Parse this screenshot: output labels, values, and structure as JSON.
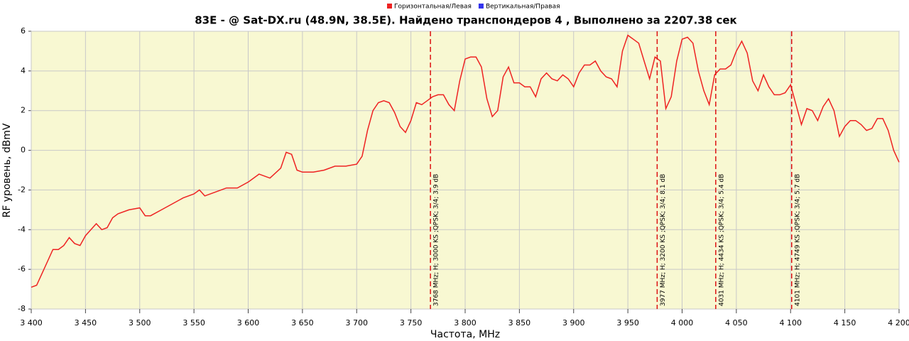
{
  "chart_data": {
    "type": "line",
    "title": "83E -  @ Sat-DX.ru (48.9N, 38.5E). Найдено транспондеров 4 , Выполнено за 2207.38 сек",
    "x_label": "Частота, MHz",
    "y_label": "RF уровень, dBmV",
    "x": [
      3400,
      3405,
      3410,
      3415,
      3420,
      3425,
      3430,
      3435,
      3440,
      3445,
      3450,
      3455,
      3460,
      3465,
      3470,
      3475,
      3480,
      3490,
      3500,
      3505,
      3510,
      3520,
      3530,
      3540,
      3550,
      3555,
      3560,
      3570,
      3580,
      3590,
      3600,
      3610,
      3620,
      3630,
      3635,
      3640,
      3645,
      3650,
      3660,
      3670,
      3680,
      3690,
      3700,
      3705,
      3710,
      3715,
      3720,
      3725,
      3730,
      3735,
      3740,
      3745,
      3750,
      3755,
      3760,
      3765,
      3770,
      3775,
      3780,
      3785,
      3790,
      3795,
      3800,
      3805,
      3810,
      3815,
      3820,
      3825,
      3830,
      3835,
      3840,
      3845,
      3850,
      3855,
      3860,
      3865,
      3870,
      3875,
      3880,
      3885,
      3890,
      3895,
      3900,
      3905,
      3910,
      3915,
      3920,
      3925,
      3930,
      3935,
      3940,
      3945,
      3950,
      3955,
      3960,
      3965,
      3970,
      3975,
      3980,
      3985,
      3990,
      3995,
      4000,
      4005,
      4010,
      4015,
      4020,
      4025,
      4030,
      4035,
      4040,
      4045,
      4050,
      4055,
      4060,
      4065,
      4070,
      4075,
      4080,
      4085,
      4090,
      4095,
      4100,
      4105,
      4110,
      4115,
      4120,
      4125,
      4130,
      4135,
      4140,
      4145,
      4150,
      4155,
      4160,
      4165,
      4170,
      4175,
      4180,
      4185,
      4190,
      4195,
      4200
    ],
    "series": [
      {
        "name": "Горизонтальная/Левая",
        "color": "#ee2222",
        "values": [
          -6.9,
          -6.8,
          -6.2,
          -5.6,
          -5.0,
          -5.0,
          -4.8,
          -4.4,
          -4.7,
          -4.8,
          -4.3,
          -4.0,
          -3.7,
          -4.0,
          -3.9,
          -3.4,
          -3.2,
          -3.0,
          -2.9,
          -3.3,
          -3.3,
          -3.0,
          -2.7,
          -2.4,
          -2.2,
          -2.0,
          -2.3,
          -2.1,
          -1.9,
          -1.9,
          -1.6,
          -1.2,
          -1.4,
          -0.9,
          -0.1,
          -0.2,
          -1.0,
          -1.1,
          -1.1,
          -1.0,
          -0.8,
          -0.8,
          -0.7,
          -0.3,
          1.0,
          2.0,
          2.4,
          2.5,
          2.4,
          1.9,
          1.2,
          0.9,
          1.5,
          2.4,
          2.3,
          2.5,
          2.7,
          2.8,
          2.8,
          2.3,
          2.0,
          3.5,
          4.6,
          4.7,
          4.7,
          4.2,
          2.6,
          1.7,
          2.0,
          3.7,
          4.2,
          3.4,
          3.4,
          3.2,
          3.2,
          2.7,
          3.6,
          3.9,
          3.6,
          3.5,
          3.8,
          3.6,
          3.2,
          3.9,
          4.3,
          4.3,
          4.5,
          4.0,
          3.7,
          3.6,
          3.2,
          5.0,
          5.8,
          5.6,
          5.4,
          4.5,
          3.6,
          4.7,
          4.5,
          2.1,
          2.7,
          4.5,
          5.6,
          5.7,
          5.4,
          4.0,
          3.0,
          2.3,
          3.8,
          4.1,
          4.1,
          4.3,
          5.0,
          5.5,
          4.9,
          3.5,
          3.0,
          3.8,
          3.2,
          2.8,
          2.8,
          2.9,
          3.3,
          2.3,
          1.3,
          2.1,
          2.0,
          1.5,
          2.2,
          2.6,
          2.0,
          0.7,
          1.2,
          1.5,
          1.5,
          1.3,
          1.0,
          1.1,
          1.6,
          1.6,
          1.0,
          0,
          -0.6
        ]
      },
      {
        "name": "Вертикальная/Правая",
        "color": "#3333ee",
        "values": [
          null,
          null,
          null,
          null,
          null,
          null,
          null,
          null,
          null,
          null,
          null,
          null,
          null,
          null,
          null,
          null,
          null,
          null,
          null,
          null,
          null,
          null,
          null,
          null,
          null,
          null,
          null,
          null,
          null,
          null,
          null,
          null,
          null,
          null,
          null,
          null,
          null,
          null,
          null,
          null,
          null,
          null,
          null,
          null,
          null,
          null,
          null,
          null,
          null,
          null,
          null,
          null,
          null,
          null,
          null,
          null,
          null,
          null,
          null,
          null,
          null,
          null,
          null,
          null,
          null,
          null,
          null,
          null,
          null,
          null,
          null,
          null,
          null,
          null,
          null,
          null,
          null,
          null,
          null,
          null,
          null,
          null,
          null,
          null,
          null,
          null,
          null,
          null,
          null,
          null,
          null,
          null,
          null,
          null,
          null,
          null,
          null,
          null,
          null,
          null,
          null,
          null,
          null,
          null,
          null,
          null,
          null,
          null,
          null,
          null,
          null,
          null,
          null,
          null,
          null,
          null,
          null,
          null,
          null,
          null,
          null,
          null,
          null,
          null,
          null,
          null,
          null,
          null,
          null,
          null,
          null,
          null,
          null,
          null,
          null,
          null,
          null,
          null,
          null,
          null,
          null,
          null,
          null
        ]
      }
    ],
    "markers": [
      {
        "x": 3768,
        "label": "3768 MHz; H; 3000 KS ;QPSK; 3/4; 3.9 dB"
      },
      {
        "x": 3977,
        "label": "3977 MHz; H; 3200 KS ;QPSK; 3/4; 8.1 dB"
      },
      {
        "x": 4031,
        "label": "4031 MHz; H; 4434 KS ;QPSK; 3/4; 5.4 dB"
      },
      {
        "x": 4101,
        "label": "4101 MHz; H; 4749 KS ;QPSK; 3/4; 5.7 dB"
      }
    ],
    "marker_color": "#dd1111",
    "xlim": [
      3400,
      4200
    ],
    "xticks": [
      {
        "value": 3400,
        "label": "3 400"
      },
      {
        "value": 3450,
        "label": "3 450"
      },
      {
        "value": 3500,
        "label": "3 500"
      },
      {
        "value": 3550,
        "label": "3 550"
      },
      {
        "value": 3600,
        "label": "3 600"
      },
      {
        "value": 3650,
        "label": "3 650"
      },
      {
        "value": 3700,
        "label": "3 700"
      },
      {
        "value": 3750,
        "label": "3 750"
      },
      {
        "value": 3800,
        "label": "3 800"
      },
      {
        "value": 3850,
        "label": "3 850"
      },
      {
        "value": 3900,
        "label": "3 900"
      },
      {
        "value": 3950,
        "label": "3 950"
      },
      {
        "value": 4000,
        "label": "4 000"
      },
      {
        "value": 4050,
        "label": "4 050"
      },
      {
        "value": 4100,
        "label": "4 100"
      },
      {
        "value": 4150,
        "label": "4 150"
      },
      {
        "value": 4200,
        "label": "4 200"
      }
    ],
    "ylim": [
      -8,
      6
    ],
    "yticks": [
      -8,
      -6,
      -4,
      -2,
      0,
      2,
      4,
      6
    ],
    "grid": true,
    "legend": "top"
  }
}
